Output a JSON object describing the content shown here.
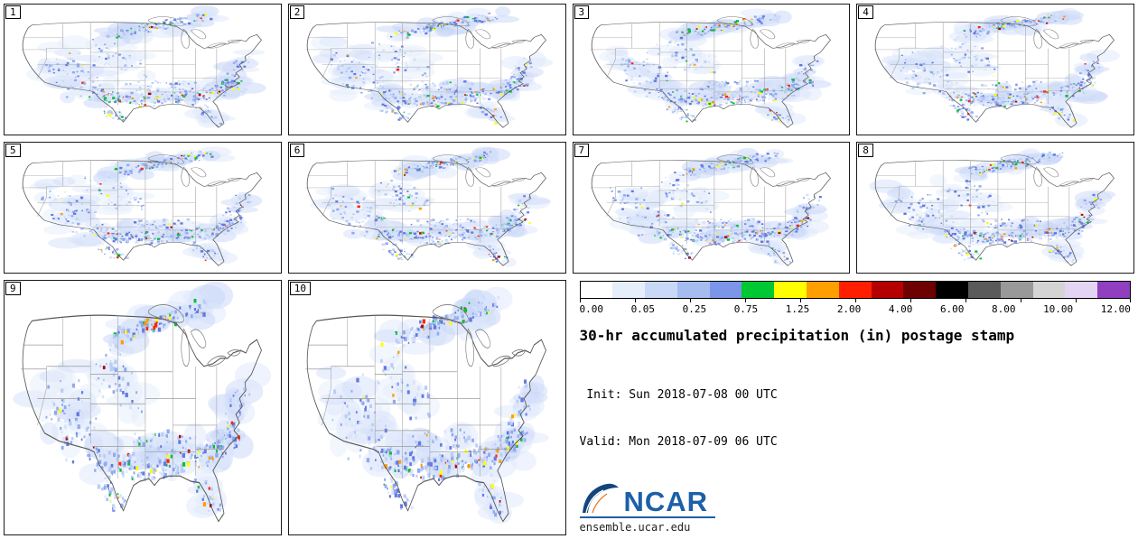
{
  "panels": [
    {
      "label": "1"
    },
    {
      "label": "2"
    },
    {
      "label": "3"
    },
    {
      "label": "4"
    },
    {
      "label": "5"
    },
    {
      "label": "6"
    },
    {
      "label": "7"
    },
    {
      "label": "8"
    },
    {
      "label": "9"
    },
    {
      "label": "10"
    }
  ],
  "colorbar": {
    "labels": [
      "0.00",
      "0.05",
      "0.25",
      "0.75",
      "1.25",
      "2.00",
      "4.00",
      "6.00",
      "8.00",
      "10.00",
      "12.00"
    ],
    "colors": [
      "#ffffff",
      "#e6eefc",
      "#c9d8f7",
      "#a5bcf1",
      "#7b95e8",
      "#00c832",
      "#ffff00",
      "#ffa000",
      "#ff1e00",
      "#b40000",
      "#6e0000",
      "#000000",
      "#5a5a5a",
      "#999999",
      "#d4d4d4",
      "#e2d4f2",
      "#8f3fbf"
    ]
  },
  "legend": {
    "title": "30-hr accumulated precipitation (in) postage stamp",
    "init": " Init: Sun 2018-07-08 00 UTC",
    "valid": "Valid: Mon 2018-07-09 06 UTC",
    "logo_text": "NCAR",
    "site": "ensemble.ucar.edu"
  },
  "chart_data": {
    "type": "heatmap",
    "subtype": "ensemble-postage-stamp-precipitation-maps",
    "title": "30-hr accumulated precipitation (in) postage stamp",
    "init_time": "Sun 2018-07-08 00 UTC",
    "valid_time": "Mon 2018-07-09 06 UTC",
    "units": "in",
    "n_members": 10,
    "member_labels": [
      "1",
      "2",
      "3",
      "4",
      "5",
      "6",
      "7",
      "8",
      "9",
      "10"
    ],
    "region": "Continental United States",
    "colorbar_levels": [
      0.0,
      0.05,
      0.25,
      0.75,
      1.25,
      2.0,
      4.0,
      6.0,
      8.0,
      10.0,
      12.0
    ],
    "colorbar_colors": [
      "#ffffff",
      "#e6eefc",
      "#c9d8f7",
      "#a5bcf1",
      "#7b95e8",
      "#00c832",
      "#ffff00",
      "#ffa000",
      "#ff1e00",
      "#b40000",
      "#6e0000",
      "#000000",
      "#5a5a5a",
      "#999999",
      "#d4d4d4",
      "#e2d4f2",
      "#8f3fbf"
    ],
    "legend_position": "bottom-right",
    "source_text": "ensemble.ucar.edu"
  }
}
